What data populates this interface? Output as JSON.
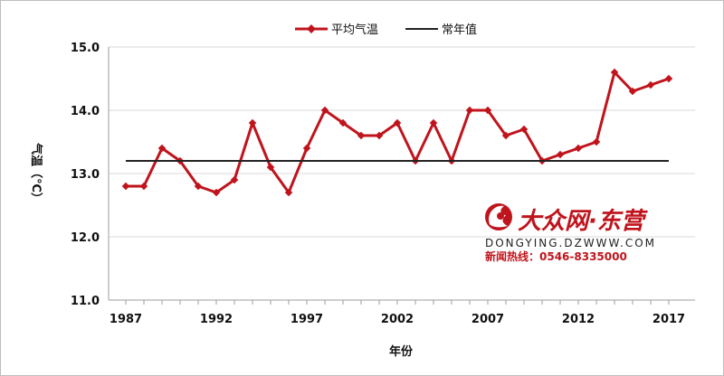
{
  "chart_data": {
    "type": "line",
    "title": "",
    "xlabel": "年份",
    "ylabel": "气温（℃）",
    "ylim": [
      11.0,
      15.0
    ],
    "xlim": [
      1987,
      2017
    ],
    "x_ticks": [
      1987,
      1992,
      1997,
      2002,
      2007,
      2012,
      2017
    ],
    "x_tick_labels": [
      "1987",
      "1992",
      "1997",
      "2002",
      "2007",
      "2012",
      "2017"
    ],
    "y_ticks": [
      11.0,
      12.0,
      13.0,
      14.0,
      15.0
    ],
    "y_tick_labels": [
      "11.0",
      "12.0",
      "13.0",
      "14.0",
      "15.0"
    ],
    "grid": {
      "horizontal": true,
      "vertical": false
    },
    "legend_position": "top",
    "x": [
      1987,
      1988,
      1989,
      1990,
      1991,
      1992,
      1993,
      1994,
      1995,
      1996,
      1997,
      1998,
      1999,
      2000,
      2001,
      2002,
      2003,
      2004,
      2005,
      2006,
      2007,
      2008,
      2009,
      2010,
      2011,
      2012,
      2013,
      2014,
      2015,
      2016,
      2017
    ],
    "series": [
      {
        "name": "平均气温",
        "color": "#c0141c",
        "marker": "diamond",
        "values": [
          12.8,
          12.8,
          13.4,
          13.2,
          12.8,
          12.7,
          12.9,
          13.8,
          13.1,
          12.7,
          13.4,
          14.0,
          13.8,
          13.6,
          13.6,
          13.8,
          13.2,
          13.8,
          13.2,
          14.0,
          14.0,
          13.6,
          13.7,
          13.2,
          13.3,
          13.4,
          13.5,
          14.6,
          14.3,
          14.4,
          14.5
        ]
      },
      {
        "name": "常年值",
        "color": "#222222",
        "marker": "none",
        "values": [
          13.2,
          13.2,
          13.2,
          13.2,
          13.2,
          13.2,
          13.2,
          13.2,
          13.2,
          13.2,
          13.2,
          13.2,
          13.2,
          13.2,
          13.2,
          13.2,
          13.2,
          13.2,
          13.2,
          13.2,
          13.2,
          13.2,
          13.2,
          13.2,
          13.2,
          13.2,
          13.2,
          13.2,
          13.2,
          13.2,
          13.2
        ]
      }
    ]
  },
  "watermark": {
    "brand_text": "大众网·东营",
    "site_text": "DONGYING.DZWWW.COM",
    "hotline_text": "新闻热线：0546-8335000",
    "colors": {
      "brand": "#c0141c",
      "site": "#222222",
      "hotline": "#c0141c"
    },
    "icon": "flame-icon"
  }
}
